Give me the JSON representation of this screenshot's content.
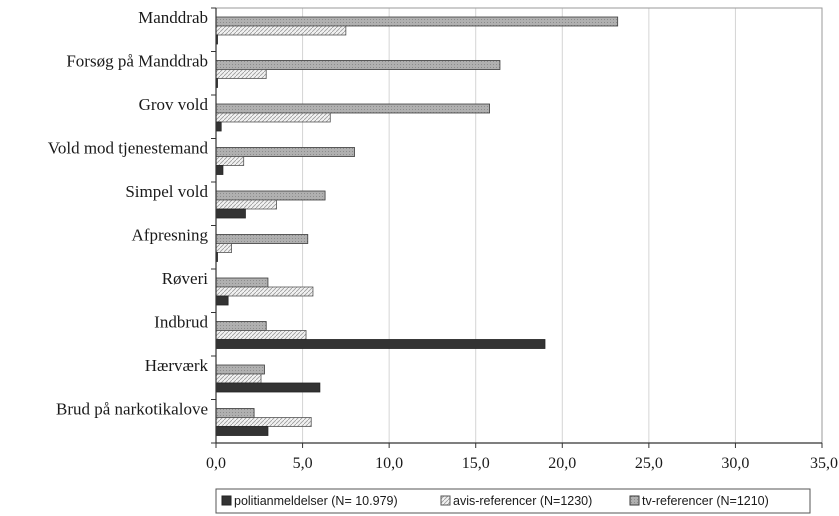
{
  "chart_data": {
    "type": "bar",
    "orientation": "horizontal",
    "categories": [
      "Manddrab",
      "Forsøg på Manddrab",
      "Grov vold",
      "Vold mod tjenestemand",
      "Simpel vold",
      "Afpresning",
      "Røveri",
      "Indbrud",
      "Hærværk",
      "Brud på narkotikalove"
    ],
    "series": [
      {
        "name": "tv-referencer (N=1210)",
        "color": "#b4b4b4",
        "values": [
          23.2,
          16.4,
          15.8,
          8.0,
          6.3,
          5.3,
          3.0,
          2.9,
          2.8,
          2.2
        ]
      },
      {
        "name": "avis-referencer (N=1230)",
        "color": "#ececec",
        "values": [
          7.5,
          2.9,
          6.6,
          1.6,
          3.5,
          0.9,
          5.6,
          5.2,
          2.6,
          5.5
        ]
      },
      {
        "name": "politianmeldelser (N= 10.979)",
        "color": "#333333",
        "values": [
          0.05,
          0.05,
          0.3,
          0.4,
          1.7,
          0.05,
          0.7,
          19.0,
          6.0,
          3.0
        ]
      }
    ],
    "xlim": [
      0,
      35
    ],
    "xticks": [
      "0,0",
      "5,0",
      "10,0",
      "15,0",
      "20,0",
      "25,0",
      "30,0",
      "35,0"
    ],
    "grid": true,
    "legend_position": "bottom",
    "legend_order": [
      "politianmeldelser (N= 10.979)",
      "avis-referencer (N=1230)",
      "tv-referencer (N=1210)"
    ],
    "title": "",
    "xlabel": "",
    "ylabel": ""
  }
}
